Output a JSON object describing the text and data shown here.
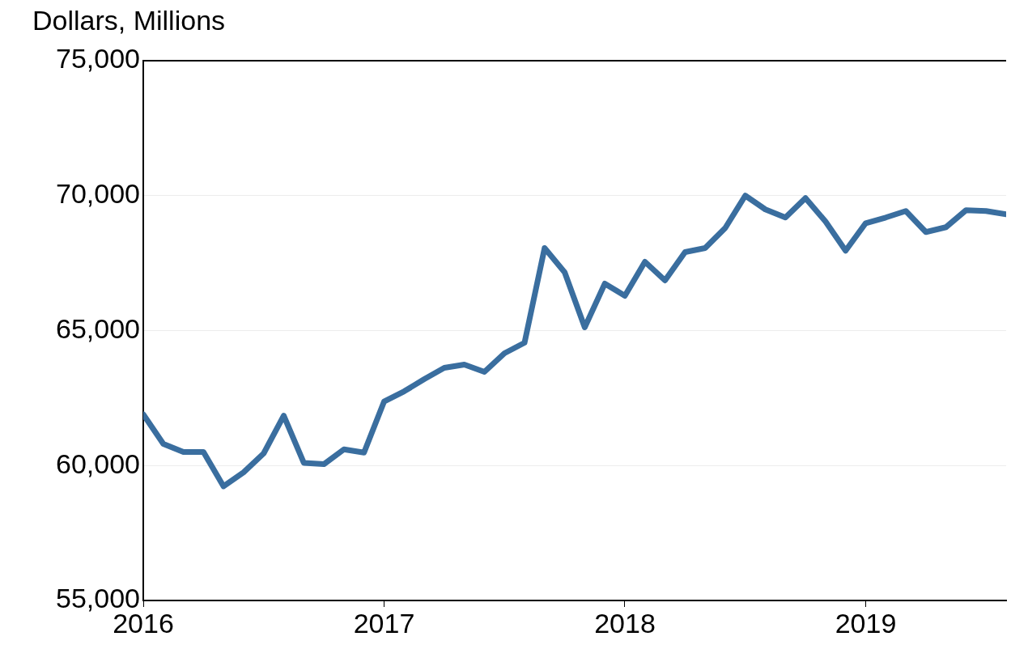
{
  "chart_data": {
    "type": "line",
    "ylabel": "Dollars, Millions",
    "x": [
      "2016-01",
      "2016-02",
      "2016-03",
      "2016-04",
      "2016-05",
      "2016-06",
      "2016-07",
      "2016-08",
      "2016-09",
      "2016-10",
      "2016-11",
      "2016-12",
      "2017-01",
      "2017-02",
      "2017-03",
      "2017-04",
      "2017-05",
      "2017-06",
      "2017-07",
      "2017-08",
      "2017-09",
      "2017-10",
      "2017-11",
      "2017-12",
      "2018-01",
      "2018-02",
      "2018-03",
      "2018-04",
      "2018-05",
      "2018-06",
      "2018-07",
      "2018-08",
      "2018-09",
      "2018-10",
      "2018-11",
      "2018-12",
      "2019-01",
      "2019-02",
      "2019-03",
      "2019-04",
      "2019-05",
      "2019-06",
      "2019-07",
      "2019-08"
    ],
    "series": [
      {
        "color": "#3a6e9f",
        "values": [
          61900,
          60800,
          60500,
          60500,
          59230,
          59750,
          60450,
          61850,
          60100,
          60050,
          60600,
          60480,
          62370,
          62750,
          63200,
          63620,
          63740,
          63470,
          64160,
          64550,
          68060,
          67160,
          65120,
          66740,
          66290,
          67550,
          66860,
          67910,
          68060,
          68800,
          70000,
          69490,
          69190,
          69910,
          69040,
          67960,
          68980,
          69190,
          69430,
          68650,
          68830,
          69460,
          69430,
          69310
        ]
      }
    ],
    "xlim": [
      "2016-01",
      "2019-08"
    ],
    "xticks": [
      "2016",
      "2017",
      "2018",
      "2019"
    ],
    "ylim": [
      55000,
      75000
    ],
    "yticks": [
      {
        "value": 55000,
        "label": "55,000"
      },
      {
        "value": 60000,
        "label": "60,000"
      },
      {
        "value": 65000,
        "label": "65,000"
      },
      {
        "value": 70000,
        "label": "70,000"
      },
      {
        "value": 75000,
        "label": "75,000"
      }
    ],
    "grid": "y",
    "legend": false,
    "marker": "none",
    "line_style": "solid"
  }
}
